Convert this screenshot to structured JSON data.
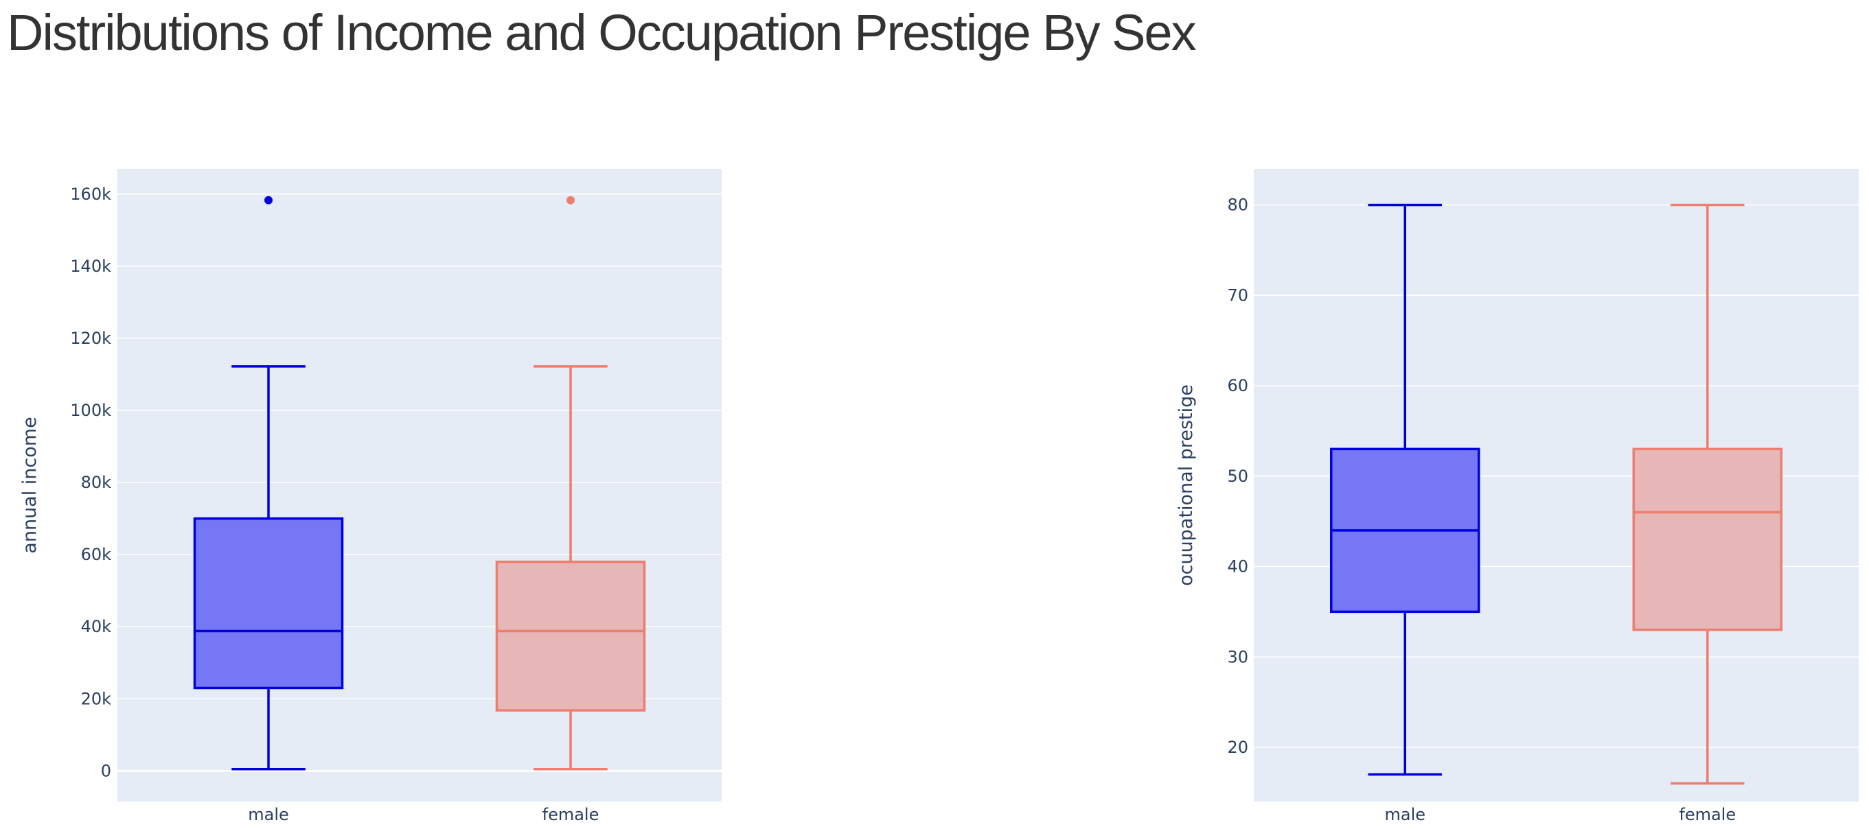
{
  "title": "Distributions of Income and Occupation Prestige By Sex",
  "colors": {
    "male_line": "#0000dd",
    "male_fill": "#7577f4",
    "female_line": "#ed7d6e",
    "female_fill": "#e6b7b6",
    "plot_bg": "#e5ecf6",
    "grid": "#ffffff"
  },
  "chart_data": [
    {
      "type": "box",
      "ylabel": "annual income",
      "xlabel": "",
      "ylim": [
        -8500,
        167000
      ],
      "grid": true,
      "yticks": [
        {
          "v": 0,
          "label": "0"
        },
        {
          "v": 20000,
          "label": "20k"
        },
        {
          "v": 40000,
          "label": "40k"
        },
        {
          "v": 60000,
          "label": "60k"
        },
        {
          "v": 80000,
          "label": "80k"
        },
        {
          "v": 100000,
          "label": "100k"
        },
        {
          "v": 120000,
          "label": "120k"
        },
        {
          "v": 140000,
          "label": "140k"
        },
        {
          "v": 160000,
          "label": "160k"
        }
      ],
      "categories": [
        "male",
        "female"
      ],
      "series": [
        {
          "name": "male",
          "min": 500,
          "q1": 23000,
          "median": 38800,
          "q3": 70000,
          "max": 112200,
          "outliers": [
            158300
          ]
        },
        {
          "name": "female",
          "min": 500,
          "q1": 16800,
          "median": 38800,
          "q3": 58000,
          "max": 112200,
          "outliers": [
            158300
          ]
        }
      ]
    },
    {
      "type": "box",
      "ylabel": "ocuupational prestige",
      "xlabel": "",
      "ylim": [
        14,
        84
      ],
      "grid": true,
      "yticks": [
        {
          "v": 20,
          "label": "20"
        },
        {
          "v": 30,
          "label": "30"
        },
        {
          "v": 40,
          "label": "40"
        },
        {
          "v": 50,
          "label": "50"
        },
        {
          "v": 60,
          "label": "60"
        },
        {
          "v": 70,
          "label": "70"
        },
        {
          "v": 80,
          "label": "80"
        }
      ],
      "categories": [
        "male",
        "female"
      ],
      "series": [
        {
          "name": "male",
          "min": 17,
          "q1": 35,
          "median": 44,
          "q3": 53,
          "max": 80,
          "outliers": []
        },
        {
          "name": "female",
          "min": 16,
          "q1": 33,
          "median": 46,
          "q3": 53,
          "max": 80,
          "outliers": []
        }
      ]
    }
  ]
}
